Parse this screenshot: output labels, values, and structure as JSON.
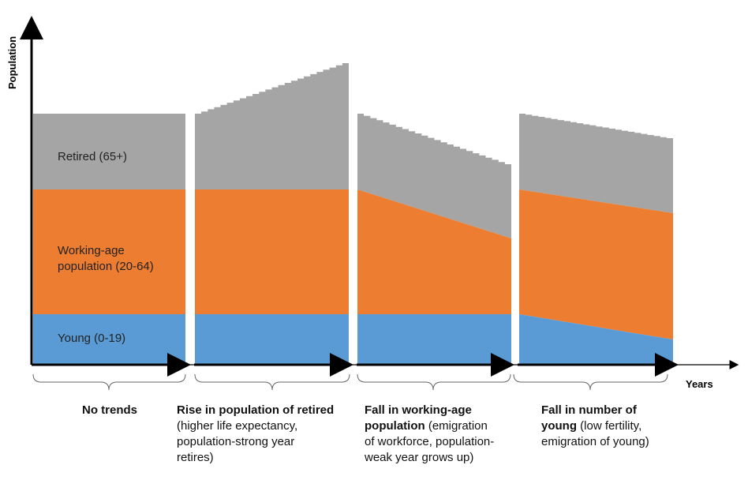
{
  "axes": {
    "y_label": "Population",
    "x_label": "Years"
  },
  "colors": {
    "young": "#5b9bd5",
    "working": "#ed7d31",
    "retired": "#a5a5a5",
    "axis": "#000000"
  },
  "bands": {
    "retired": "Retired (65+)",
    "working_line1": "Working-age",
    "working_line2": "population (20-64)",
    "young": "Young (0-19)"
  },
  "scenarios": [
    {
      "title": "No trends",
      "detail_lines": []
    },
    {
      "title": "Rise in population of retired",
      "detail_lines": [
        "(higher life expectancy,",
        "population-strong year",
        "retires)"
      ]
    },
    {
      "title_lines": [
        "Fall in working-age",
        "population"
      ],
      "title": "Fall in working-age population",
      "detail_inline": "(emigration",
      "detail_lines": [
        "of workforce, population-",
        "weak year grows up)"
      ]
    },
    {
      "title_lines": [
        "Fall in number of",
        "young"
      ],
      "title": "Fall in number of young",
      "detail_inline": "(low fertility,",
      "detail_lines": [
        "emigration of young)"
      ]
    }
  ]
}
